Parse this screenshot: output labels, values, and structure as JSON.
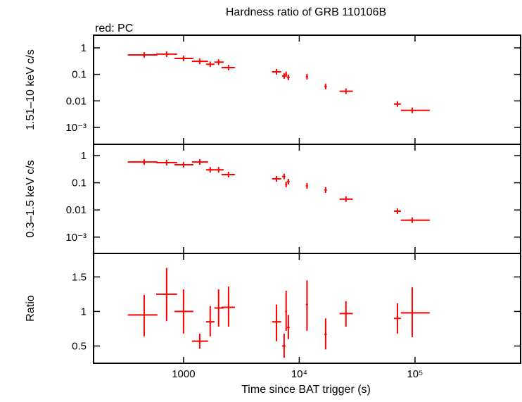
{
  "chart_data": [
    {
      "type": "errorbar",
      "title": "Hardness ratio of GRB 110106B",
      "annotation": "red: PC",
      "ylabel": "1.51–10 keV c/s",
      "xscale": "log",
      "yscale": "log",
      "xlim": [
        167,
        817000
      ],
      "ylim": [
        0.00023,
        3
      ],
      "color": "#ff0000",
      "yticks": [
        1,
        0.1,
        0.01,
        {
          "value": 0.001,
          "label": "10⁻³"
        }
      ],
      "x": [
        457,
        714,
        1000,
        1380,
        1700,
        2010,
        2450,
        6350,
        7400,
        7700,
        8050,
        11660,
        16900,
        25300,
        70500,
        94600
      ],
      "xlow": [
        330,
        580,
        835,
        1183,
        1565,
        1850,
        2130,
        5820,
        7100,
        7550,
        7850,
        11400,
        16500,
        22300,
        65700,
        75500
      ],
      "xhigh": [
        595,
        880,
        1216,
        1630,
        1850,
        2220,
        2780,
        6990,
        7600,
        7850,
        8250,
        11900,
        17300,
        29000,
        75500,
        134000
      ],
      "values": [
        0.54,
        0.58,
        0.4,
        0.31,
        0.24,
        0.29,
        0.18,
        0.125,
        0.087,
        0.1,
        0.077,
        0.082,
        0.035,
        0.023,
        0.0076,
        0.0044
      ]
    },
    {
      "type": "errorbar",
      "ylabel": "0.3–1.5 keV c/s",
      "xscale": "log",
      "yscale": "log",
      "xlim": [
        167,
        817000
      ],
      "ylim": [
        0.00025,
        2.6
      ],
      "color": "#ff0000",
      "yticks": [
        1,
        0.1,
        0.01,
        {
          "value": 0.001,
          "label": "10⁻³"
        }
      ],
      "x": [
        457,
        714,
        1000,
        1380,
        1700,
        2010,
        2450,
        6350,
        7400,
        7700,
        8050,
        11660,
        16900,
        25300,
        70500,
        94600
      ],
      "xlow": [
        330,
        580,
        835,
        1183,
        1565,
        1850,
        2130,
        5820,
        7100,
        7550,
        7850,
        11400,
        16500,
        22300,
        65700,
        75500
      ],
      "xhigh": [
        595,
        880,
        1216,
        1630,
        1850,
        2220,
        2780,
        6990,
        7600,
        7850,
        8250,
        11900,
        17300,
        29000,
        75500,
        134000
      ],
      "values": [
        0.58,
        0.55,
        0.46,
        0.58,
        0.3,
        0.3,
        0.2,
        0.14,
        0.17,
        0.087,
        0.11,
        0.077,
        0.054,
        0.025,
        0.009,
        0.0042
      ]
    },
    {
      "type": "errorbar",
      "ylabel": "Ratio",
      "xlabel": "Time since BAT trigger (s)",
      "xscale": "log",
      "yscale": "linear",
      "xlim": [
        167,
        817000
      ],
      "ylim": [
        0.25,
        1.84
      ],
      "color": "#ff0000",
      "xticks": [
        1000,
        {
          "value": 10000,
          "label": "10⁴"
        },
        {
          "value": 100000,
          "label": "10⁵"
        }
      ],
      "yticks": [
        0.5,
        1,
        1.5
      ],
      "x": [
        457,
        714,
        1000,
        1380,
        1700,
        2010,
        2450,
        6350,
        7400,
        7700,
        8050,
        11660,
        16900,
        25300,
        70500,
        94600
      ],
      "xlow": [
        330,
        580,
        835,
        1183,
        1565,
        1850,
        2130,
        5820,
        7100,
        7550,
        7850,
        11400,
        16500,
        22300,
        65700,
        75500
      ],
      "xhigh": [
        595,
        880,
        1216,
        1630,
        1850,
        2220,
        2780,
        6990,
        7600,
        7850,
        8250,
        11900,
        17300,
        29000,
        75500,
        134000
      ],
      "values": [
        0.95,
        1.25,
        1.0,
        0.57,
        0.85,
        1.05,
        1.06,
        0.85,
        0.5,
        1.0,
        0.77,
        1.1,
        0.67,
        0.97,
        0.9,
        0.98
      ],
      "ylow": [
        0.64,
        0.86,
        0.68,
        0.46,
        0.64,
        0.78,
        0.78,
        0.57,
        0.33,
        0.72,
        0.6,
        0.72,
        0.45,
        0.78,
        0.68,
        0.63
      ],
      "yhigh": [
        1.24,
        1.63,
        1.32,
        0.68,
        1.08,
        1.32,
        1.36,
        1.1,
        0.68,
        1.3,
        0.95,
        1.45,
        0.9,
        1.15,
        1.12,
        1.35
      ]
    }
  ]
}
